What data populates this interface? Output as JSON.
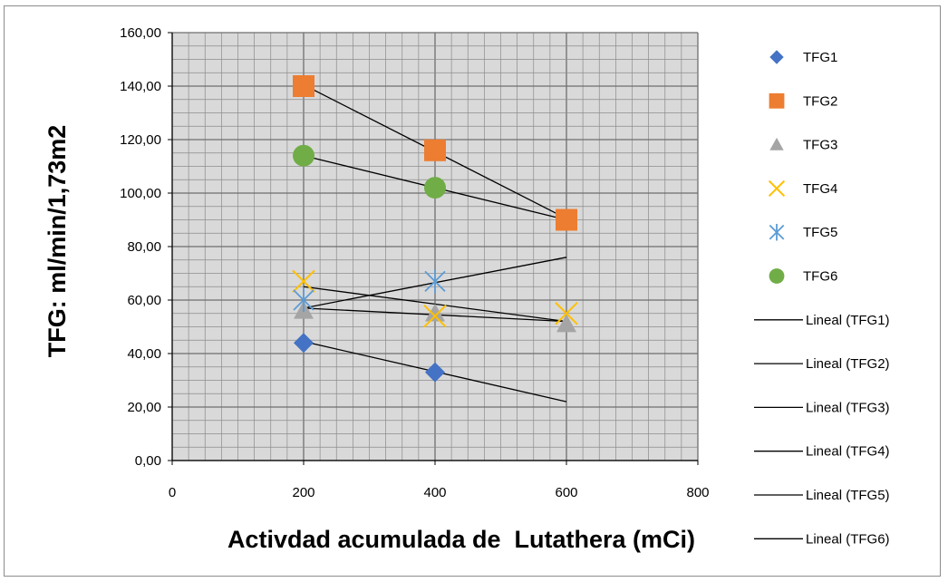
{
  "chart_data": {
    "type": "scatter",
    "title": "",
    "xlabel": "Activdad acumulada de  Lutathera (mCi)",
    "ylabel": "TFG: ml/min/1,73m2",
    "xlim": [
      0,
      800
    ],
    "ylim": [
      0,
      160
    ],
    "x_ticks": [
      "0",
      "200",
      "400",
      "600",
      "800"
    ],
    "y_ticks": [
      "0,00",
      "20,00",
      "40,00",
      "60,00",
      "80,00",
      "100,00",
      "120,00",
      "140,00",
      "160,00"
    ],
    "grid": true,
    "legend_position": "right",
    "series": [
      {
        "name": "TFG1",
        "marker": "diamond",
        "color": "#4472C4",
        "x": [
          200,
          400
        ],
        "y": [
          44,
          33
        ]
      },
      {
        "name": "TFG2",
        "marker": "square",
        "color": "#ED7D31",
        "x": [
          200,
          400,
          600
        ],
        "y": [
          140,
          116,
          90
        ]
      },
      {
        "name": "TFG3",
        "marker": "triangle",
        "color": "#A5A5A5",
        "x": [
          200,
          400,
          600
        ],
        "y": [
          56,
          55,
          51
        ]
      },
      {
        "name": "TFG4",
        "marker": "x",
        "color": "#FFC000",
        "x": [
          200,
          400,
          600
        ],
        "y": [
          67,
          54,
          55
        ]
      },
      {
        "name": "TFG5",
        "marker": "star",
        "color": "#5B9BD5",
        "x": [
          200,
          400
        ],
        "y": [
          60,
          67
        ]
      },
      {
        "name": "TFG6",
        "marker": "circle",
        "color": "#70AD47",
        "x": [
          200,
          400
        ],
        "y": [
          114,
          102
        ]
      }
    ],
    "trendlines": [
      {
        "name": "Lineal (TFG1)",
        "type": "linear",
        "x": [
          200,
          600
        ],
        "y": [
          44.5,
          22
        ]
      },
      {
        "name": "Lineal (TFG2)",
        "type": "linear",
        "x": [
          200,
          600
        ],
        "y": [
          140.5,
          90.5
        ]
      },
      {
        "name": "Lineal (TFG3)",
        "type": "linear",
        "x": [
          200,
          600
        ],
        "y": [
          57,
          52
        ]
      },
      {
        "name": "Lineal (TFG4)",
        "type": "linear",
        "x": [
          200,
          600
        ],
        "y": [
          65,
          52
        ]
      },
      {
        "name": "Lineal (TFG5)",
        "type": "linear",
        "x": [
          200,
          600
        ],
        "y": [
          57,
          76
        ]
      },
      {
        "name": "Lineal (TFG6)",
        "type": "linear",
        "x": [
          200,
          600
        ],
        "y": [
          114,
          90
        ]
      }
    ]
  },
  "colors": {
    "plot_background": "#D9D9D9",
    "gridline": "#8C8C8C",
    "trendline": "#000000"
  }
}
